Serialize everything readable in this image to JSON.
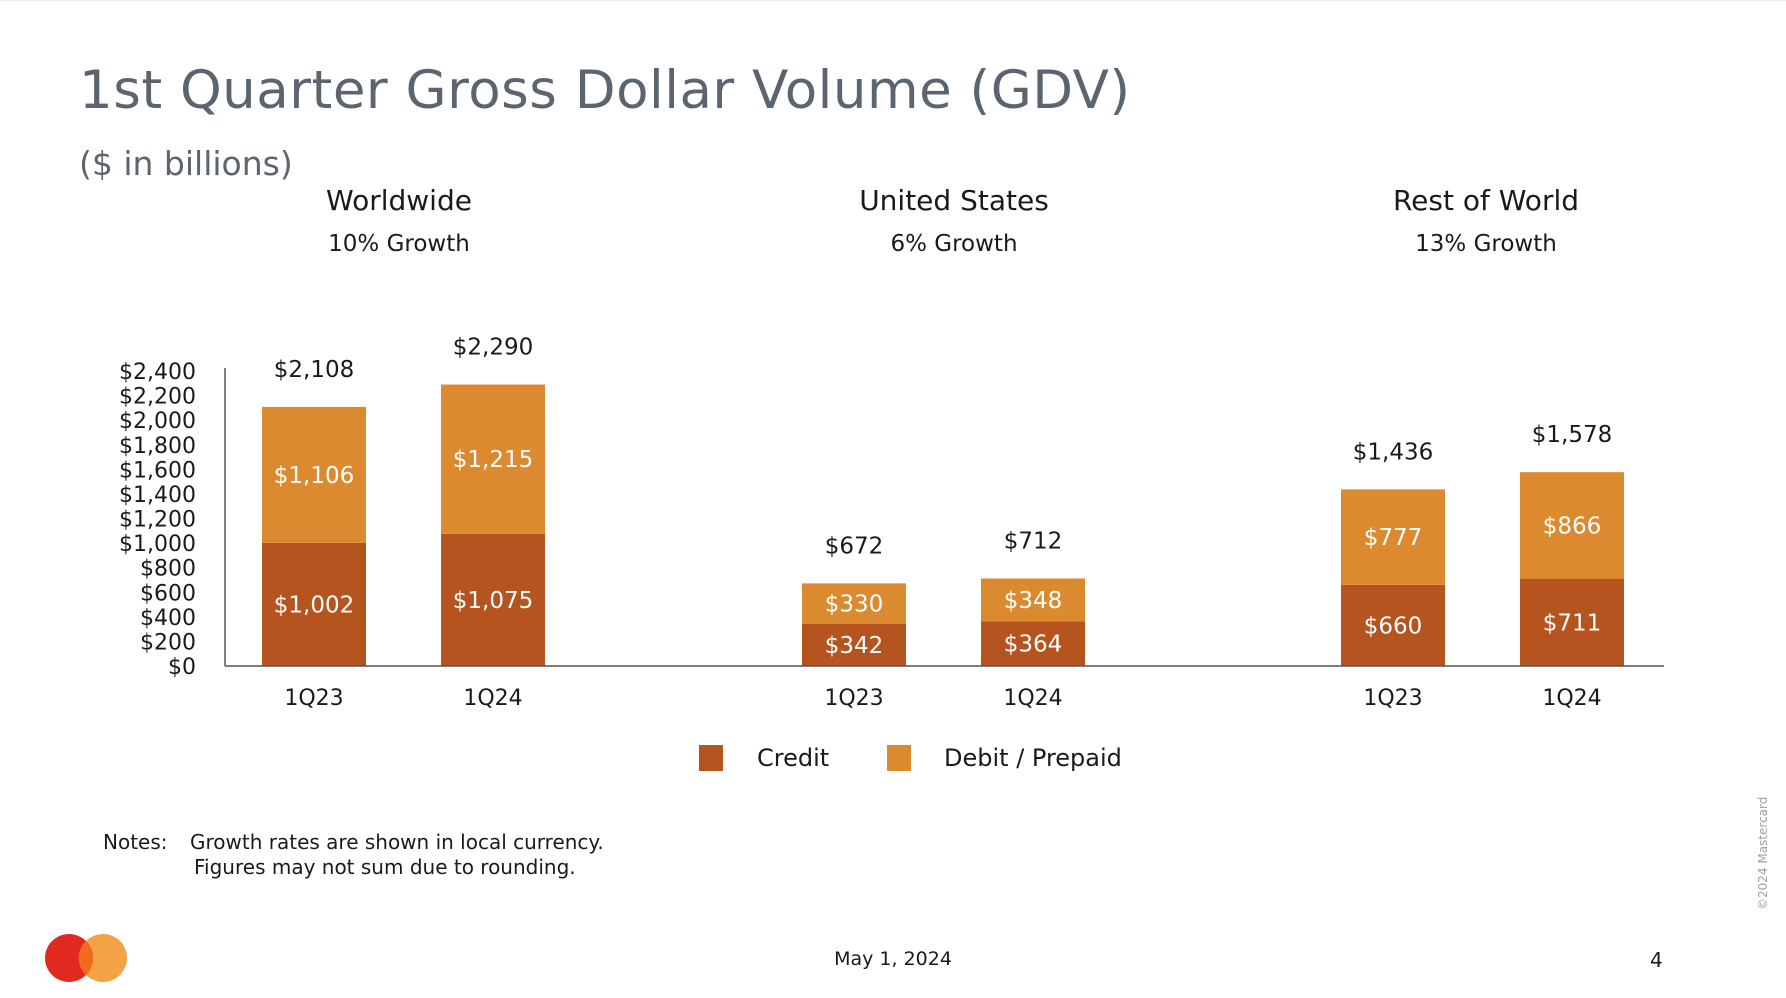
{
  "title": "1st Quarter Gross Dollar Volume (GDV)",
  "subtitle": "($ in billions)",
  "panels": [
    {
      "name": "Worldwide",
      "growth": "10% Growth"
    },
    {
      "name": "United States",
      "growth": "6% Growth"
    },
    {
      "name": "Rest of World",
      "growth": "13% Growth"
    }
  ],
  "legend": [
    {
      "label": "Credit",
      "color": "#b5541f"
    },
    {
      "label": "Debit / Prepaid",
      "color": "#dc8a30"
    }
  ],
  "notes": {
    "label": "Notes:",
    "line1": "Growth rates are shown in local currency.",
    "line2": "Figures may not sum due to rounding."
  },
  "footer": {
    "date": "May 1, 2024",
    "page": "4",
    "copyright": "©2024 Mastercard"
  },
  "chart_data": {
    "type": "bar",
    "stacked": true,
    "ylim": [
      0,
      2400
    ],
    "yticks": [
      0,
      200,
      400,
      600,
      800,
      1000,
      1200,
      1400,
      1600,
      1800,
      2000,
      2200,
      2400
    ],
    "ytick_labels": [
      "$0",
      "$200",
      "$400",
      "$600",
      "$800",
      "$1,000",
      "$1,200",
      "$1,400",
      "$1,600",
      "$1,800",
      "$2,000",
      "$2,200",
      "$2,400"
    ],
    "groups": [
      {
        "name": "Worldwide",
        "bars": [
          {
            "category": "1Q23",
            "credit": 1002,
            "debit_prepaid": 1106,
            "total": 2108,
            "credit_label": "$1,002",
            "debit_label": "$1,106",
            "total_label": "$2,108"
          },
          {
            "category": "1Q24",
            "credit": 1075,
            "debit_prepaid": 1215,
            "total": 2290,
            "credit_label": "$1,075",
            "debit_label": "$1,215",
            "total_label": "$2,290"
          }
        ]
      },
      {
        "name": "United States",
        "bars": [
          {
            "category": "1Q23",
            "credit": 342,
            "debit_prepaid": 330,
            "total": 672,
            "credit_label": "$342",
            "debit_label": "$330",
            "total_label": "$672"
          },
          {
            "category": "1Q24",
            "credit": 364,
            "debit_prepaid": 348,
            "total": 712,
            "credit_label": "$364",
            "debit_label": "$348",
            "total_label": "$712"
          }
        ]
      },
      {
        "name": "Rest of World",
        "bars": [
          {
            "category": "1Q23",
            "credit": 660,
            "debit_prepaid": 777,
            "total": 1436,
            "credit_label": "$660",
            "debit_label": "$777",
            "total_label": "$1,436"
          },
          {
            "category": "1Q24",
            "credit": 711,
            "debit_prepaid": 866,
            "total": 1578,
            "credit_label": "$711",
            "debit_label": "$866",
            "total_label": "$1,578"
          }
        ]
      }
    ],
    "series": [
      {
        "name": "Credit",
        "key": "credit",
        "color": "#b5541f"
      },
      {
        "name": "Debit / Prepaid",
        "key": "debit_prepaid",
        "color": "#dc8a30"
      }
    ]
  }
}
